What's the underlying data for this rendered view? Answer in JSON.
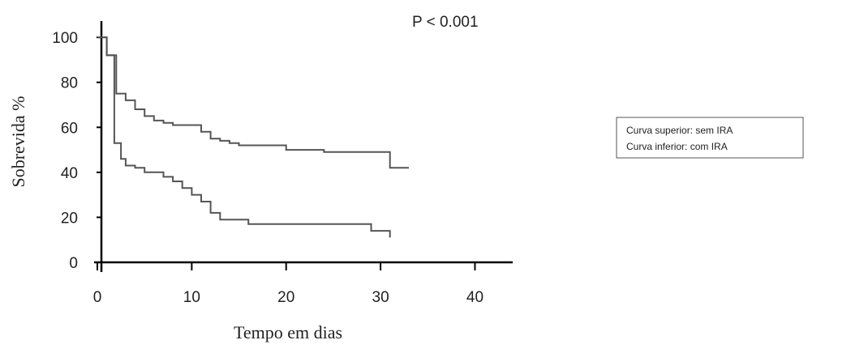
{
  "chart_data": {
    "type": "line",
    "subtype": "kaplan-meier step",
    "xlabel": "Tempo em dias",
    "ylabel": "Sobrevida %",
    "xlim": [
      0,
      44
    ],
    "ylim": [
      0,
      104
    ],
    "x_ticks": [
      0,
      10,
      20,
      30,
      40
    ],
    "y_ticks": [
      0,
      20,
      40,
      60,
      80,
      100
    ],
    "annotation": "P < 0.001",
    "legend": [
      "Curva superior: sem IRA",
      "Curva inferior: com IRA"
    ],
    "grid": false,
    "legend_position": "right",
    "series": [
      {
        "x": [
          0,
          0.6,
          1,
          2,
          3,
          4,
          5,
          6,
          7,
          8,
          9,
          10,
          11,
          12,
          13,
          14,
          15,
          16,
          20,
          24,
          29,
          31,
          32,
          33
        ],
        "y": [
          100,
          100,
          92,
          75,
          72,
          68,
          65,
          63,
          62,
          61,
          61,
          61,
          58,
          55,
          54,
          53,
          52,
          52,
          50,
          49,
          49,
          42,
          42,
          42
        ]
      },
      {
        "x": [
          0,
          0.5,
          1,
          1.8,
          2.5,
          3,
          4,
          5,
          6,
          7,
          8,
          9,
          10,
          11,
          12,
          13,
          16,
          20,
          25,
          29,
          30,
          31
        ],
        "y": [
          100,
          100,
          92,
          53,
          46,
          43,
          42,
          40,
          40,
          38,
          36,
          33,
          30,
          27,
          22,
          19,
          17,
          17,
          17,
          14,
          14,
          11
        ]
      }
    ]
  }
}
